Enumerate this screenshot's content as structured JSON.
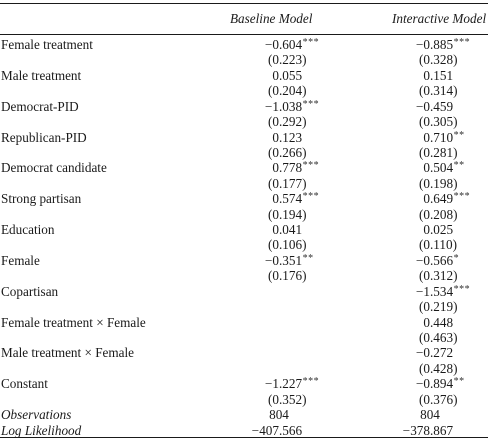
{
  "header": {
    "col1": "Baseline Model",
    "col2": "Interactive Model"
  },
  "rows": [
    {
      "label": "Female treatment",
      "c1": {
        "int": "−0",
        "dec": ".604",
        "stars": "***"
      },
      "c2": {
        "int": "−0",
        "dec": ".885",
        "stars": "***"
      }
    },
    {
      "label": "",
      "c1": {
        "int": "(0",
        "dec": ".223)",
        "stars": ""
      },
      "c2": {
        "int": "(0",
        "dec": ".328)",
        "stars": ""
      }
    },
    {
      "label": "Male treatment",
      "c1": {
        "int": "0",
        "dec": ".055",
        "stars": ""
      },
      "c2": {
        "int": "0",
        "dec": ".151",
        "stars": ""
      }
    },
    {
      "label": "",
      "c1": {
        "int": "(0",
        "dec": ".204)",
        "stars": ""
      },
      "c2": {
        "int": "(0",
        "dec": ".314)",
        "stars": ""
      }
    },
    {
      "label": "Democrat-PID",
      "c1": {
        "int": "−1",
        "dec": ".038",
        "stars": "***"
      },
      "c2": {
        "int": "−0",
        "dec": ".459",
        "stars": ""
      }
    },
    {
      "label": "",
      "c1": {
        "int": "(0",
        "dec": ".292)",
        "stars": ""
      },
      "c2": {
        "int": "(0",
        "dec": ".305)",
        "stars": ""
      }
    },
    {
      "label": "Republican-PID",
      "c1": {
        "int": "0",
        "dec": ".123",
        "stars": ""
      },
      "c2": {
        "int": "0",
        "dec": ".710",
        "stars": "**"
      }
    },
    {
      "label": "",
      "c1": {
        "int": "(0",
        "dec": ".266)",
        "stars": ""
      },
      "c2": {
        "int": "(0",
        "dec": ".281)",
        "stars": ""
      }
    },
    {
      "label": "Democrat candidate",
      "c1": {
        "int": "0",
        "dec": ".778",
        "stars": "***"
      },
      "c2": {
        "int": "0",
        "dec": ".504",
        "stars": "**"
      }
    },
    {
      "label": "",
      "c1": {
        "int": "(0",
        "dec": ".177)",
        "stars": ""
      },
      "c2": {
        "int": "(0",
        "dec": ".198)",
        "stars": ""
      }
    },
    {
      "label": "Strong partisan",
      "c1": {
        "int": "0",
        "dec": ".574",
        "stars": "***"
      },
      "c2": {
        "int": "0",
        "dec": ".649",
        "stars": "***"
      }
    },
    {
      "label": "",
      "c1": {
        "int": "(0",
        "dec": ".194)",
        "stars": ""
      },
      "c2": {
        "int": "(0",
        "dec": ".208)",
        "stars": ""
      }
    },
    {
      "label": "Education",
      "c1": {
        "int": "0",
        "dec": ".041",
        "stars": ""
      },
      "c2": {
        "int": "0",
        "dec": ".025",
        "stars": ""
      }
    },
    {
      "label": "",
      "c1": {
        "int": "(0",
        "dec": ".106)",
        "stars": ""
      },
      "c2": {
        "int": "(0",
        "dec": ".110)",
        "stars": ""
      }
    },
    {
      "label": "Female",
      "c1": {
        "int": "−0",
        "dec": ".351",
        "stars": "**"
      },
      "c2": {
        "int": "−0",
        "dec": ".566",
        "stars": "*"
      }
    },
    {
      "label": "",
      "c1": {
        "int": "(0",
        "dec": ".176)",
        "stars": ""
      },
      "c2": {
        "int": "(0",
        "dec": ".312)",
        "stars": ""
      }
    },
    {
      "label": "Copartisan",
      "c1": {
        "int": "",
        "dec": "",
        "stars": ""
      },
      "c2": {
        "int": "−1",
        "dec": ".534",
        "stars": "***"
      }
    },
    {
      "label": "",
      "c1": {
        "int": "",
        "dec": "",
        "stars": ""
      },
      "c2": {
        "int": "(0",
        "dec": ".219)",
        "stars": ""
      }
    },
    {
      "label": "Female treatment × Female",
      "c1": {
        "int": "",
        "dec": "",
        "stars": ""
      },
      "c2": {
        "int": "0",
        "dec": ".448",
        "stars": ""
      }
    },
    {
      "label": "",
      "c1": {
        "int": "",
        "dec": "",
        "stars": ""
      },
      "c2": {
        "int": "(0",
        "dec": ".463)",
        "stars": ""
      }
    },
    {
      "label": "Male treatment × Female",
      "c1": {
        "int": "",
        "dec": "",
        "stars": ""
      },
      "c2": {
        "int": "−0",
        "dec": ".272",
        "stars": ""
      }
    },
    {
      "label": "",
      "c1": {
        "int": "",
        "dec": "",
        "stars": ""
      },
      "c2": {
        "int": "(0",
        "dec": ".428)",
        "stars": ""
      }
    },
    {
      "label": "Constant",
      "c1": {
        "int": "−1",
        "dec": ".227",
        "stars": "***"
      },
      "c2": {
        "int": "−0",
        "dec": ".894",
        "stars": "**"
      }
    },
    {
      "label": "",
      "c1": {
        "int": "(0",
        "dec": ".352)",
        "stars": ""
      },
      "c2": {
        "int": "(0",
        "dec": ".376)",
        "stars": ""
      }
    },
    {
      "label": "Observations",
      "italic": true,
      "c1": {
        "int": "804",
        "dec": "",
        "stars": ""
      },
      "c2": {
        "int": "804",
        "dec": "",
        "stars": ""
      }
    },
    {
      "label": "Log Likelihood",
      "italic": true,
      "c1": {
        "int": "−407",
        "dec": ".566",
        "stars": ""
      },
      "c2": {
        "int": "−378",
        "dec": ".867",
        "stars": ""
      }
    }
  ]
}
